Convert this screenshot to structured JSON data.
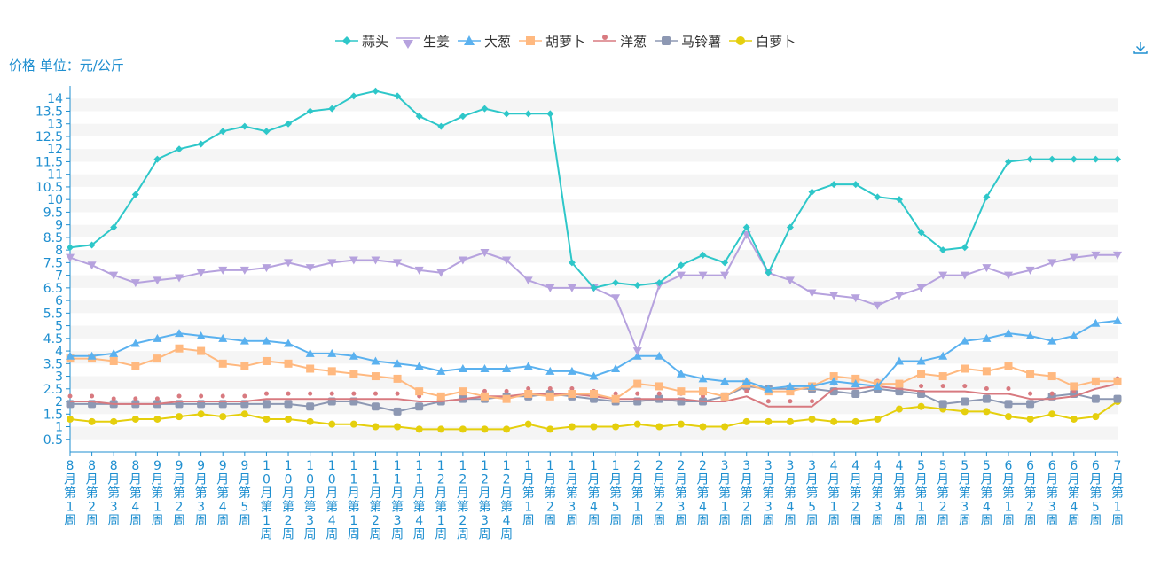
{
  "unit_label": "价格 单位：元/公斤",
  "icons": {
    "download": "download-icon"
  },
  "colors": {
    "garlic": "#2ec7c9",
    "ginger": "#b6a2de",
    "scallion": "#5ab1ef",
    "carrot": "#ffb980",
    "onion": "#d87a80",
    "potato": "#8d98b3",
    "radish": "#e5cf0d",
    "axis_text": "#1f8fd0"
  },
  "chart_data": {
    "type": "line",
    "title": "",
    "ylabel": "价格 单位：元/公斤",
    "xlabel": "",
    "ylim": [
      0,
      14.5
    ],
    "yticks": [
      0.5,
      1,
      1.5,
      2,
      2.5,
      3,
      3.5,
      4,
      4.5,
      5,
      5.5,
      6,
      6.5,
      7,
      7.5,
      8,
      8.5,
      9,
      9.5,
      10,
      10.5,
      11,
      11.5,
      12,
      12.5,
      13,
      13.5,
      14
    ],
    "grid": "horizontal-stripes",
    "legend_position": "top-center",
    "categories": [
      "8月第1周",
      "8月第2周",
      "8月第3周",
      "8月第4周",
      "9月第1周",
      "9月第2周",
      "9月第3周",
      "9月第4周",
      "9月第5周",
      "10月第1周",
      "10月第2周",
      "10月第3周",
      "10月第4周",
      "11月第1周",
      "11月第2周",
      "11月第3周",
      "11月第4周",
      "12月第1周",
      "12月第2周",
      "12月第3周",
      "12月第4周",
      "1月第1周",
      "1月第2周",
      "1月第3周",
      "1月第4周",
      "1月第5周",
      "2月第1周",
      "2月第2周",
      "2月第3周",
      "2月第4周",
      "3月第1周",
      "3月第2周",
      "3月第3周",
      "3月第4周",
      "3月第5周",
      "4月第1周",
      "4月第2周",
      "4月第3周",
      "4月第4周",
      "5月第1周",
      "5月第2周",
      "5月第3周",
      "5月第4周",
      "6月第1周",
      "6月第2周",
      "6月第3周",
      "6月第4周",
      "6月第5周",
      "7月第1周"
    ],
    "series": [
      {
        "name": "蒜头",
        "color": "#2ec7c9",
        "marker": "diamond",
        "values": [
          8.1,
          8.2,
          8.9,
          10.2,
          11.6,
          12.0,
          12.2,
          12.7,
          12.9,
          12.7,
          13.0,
          13.5,
          13.6,
          14.1,
          14.3,
          14.1,
          13.3,
          12.9,
          13.3,
          13.6,
          13.4,
          13.4,
          13.4,
          7.5,
          6.5,
          6.7,
          6.6,
          6.7,
          7.4,
          7.8,
          7.5,
          8.9,
          7.1,
          8.9,
          10.3,
          10.6,
          10.6,
          10.1,
          10.0,
          8.7,
          8.0,
          8.1,
          10.1,
          11.5,
          11.6,
          11.6,
          11.6,
          11.6,
          11.6
        ]
      },
      {
        "name": "生姜",
        "color": "#b6a2de",
        "marker": "triangle-down",
        "values": [
          7.7,
          7.4,
          7.0,
          6.7,
          6.8,
          6.9,
          7.1,
          7.2,
          7.2,
          7.3,
          7.5,
          7.3,
          7.5,
          7.6,
          7.6,
          7.5,
          7.2,
          7.1,
          7.6,
          7.9,
          7.6,
          6.8,
          6.5,
          6.5,
          6.5,
          6.1,
          4.0,
          6.6,
          7.0,
          7.0,
          7.0,
          8.6,
          7.1,
          6.8,
          6.3,
          6.2,
          6.1,
          5.8,
          6.2,
          6.5,
          7.0,
          7.0,
          7.3,
          7.0,
          7.2,
          7.5,
          7.7,
          7.8,
          7.8
        ]
      },
      {
        "name": "大葱",
        "color": "#5ab1ef",
        "marker": "triangle",
        "values": [
          3.8,
          3.8,
          3.9,
          4.3,
          4.5,
          4.7,
          4.6,
          4.5,
          4.4,
          4.4,
          4.3,
          3.9,
          3.9,
          3.8,
          3.6,
          3.5,
          3.4,
          3.2,
          3.3,
          3.3,
          3.3,
          3.4,
          3.2,
          3.2,
          3.0,
          3.3,
          3.8,
          3.8,
          3.1,
          2.9,
          2.8,
          2.8,
          2.5,
          2.6,
          2.6,
          2.8,
          2.7,
          2.6,
          3.6,
          3.6,
          3.8,
          4.4,
          4.5,
          4.7,
          4.6,
          4.4,
          4.6,
          5.1,
          5.2
        ]
      },
      {
        "name": "胡萝卜",
        "color": "#ffb980",
        "marker": "square",
        "values": [
          3.7,
          3.7,
          3.6,
          3.4,
          3.7,
          4.1,
          4.0,
          3.5,
          3.4,
          3.6,
          3.5,
          3.3,
          3.2,
          3.1,
          3.0,
          2.9,
          2.4,
          2.2,
          2.4,
          2.2,
          2.1,
          2.3,
          2.2,
          2.3,
          2.3,
          2.1,
          2.7,
          2.6,
          2.4,
          2.4,
          2.2,
          2.7,
          2.4,
          2.4,
          2.6,
          3.0,
          2.9,
          2.7,
          2.7,
          3.1,
          3.0,
          3.3,
          3.2,
          3.4,
          3.1,
          3.0,
          2.6,
          2.8,
          2.8
        ]
      },
      {
        "name": "洋葱",
        "color": "#d87a80",
        "marker": "pin",
        "values": [
          2.0,
          2.0,
          1.9,
          1.9,
          1.9,
          2.0,
          2.0,
          2.0,
          2.0,
          2.1,
          2.1,
          2.1,
          2.1,
          2.1,
          2.1,
          2.1,
          2.0,
          2.0,
          2.1,
          2.2,
          2.2,
          2.3,
          2.3,
          2.3,
          2.2,
          2.1,
          2.1,
          2.1,
          2.1,
          2.0,
          2.0,
          2.2,
          1.8,
          1.8,
          1.8,
          2.5,
          2.5,
          2.6,
          2.5,
          2.4,
          2.4,
          2.4,
          2.3,
          2.3,
          2.1,
          2.1,
          2.2,
          2.5,
          2.7
        ]
      },
      {
        "name": "马铃薯",
        "color": "#8d98b3",
        "marker": "rounded-square",
        "values": [
          1.9,
          1.9,
          1.9,
          1.9,
          1.9,
          1.9,
          1.9,
          1.9,
          1.9,
          1.9,
          1.9,
          1.8,
          2.0,
          2.0,
          1.8,
          1.6,
          1.8,
          2.0,
          2.1,
          2.1,
          2.2,
          2.2,
          2.3,
          2.2,
          2.1,
          2.0,
          2.0,
          2.1,
          2.0,
          2.0,
          2.2,
          2.6,
          2.5,
          2.5,
          2.5,
          2.4,
          2.3,
          2.5,
          2.4,
          2.3,
          1.9,
          2.0,
          2.1,
          1.9,
          1.9,
          2.2,
          2.3,
          2.1,
          2.1
        ]
      },
      {
        "name": "白萝卜",
        "color": "#e5cf0d",
        "marker": "circle",
        "values": [
          1.3,
          1.2,
          1.2,
          1.3,
          1.3,
          1.4,
          1.5,
          1.4,
          1.5,
          1.3,
          1.3,
          1.2,
          1.1,
          1.1,
          1.0,
          1.0,
          0.9,
          0.9,
          0.9,
          0.9,
          0.9,
          1.1,
          0.9,
          1.0,
          1.0,
          1.0,
          1.1,
          1.0,
          1.1,
          1.0,
          1.0,
          1.2,
          1.2,
          1.2,
          1.3,
          1.2,
          1.2,
          1.3,
          1.7,
          1.8,
          1.7,
          1.6,
          1.6,
          1.4,
          1.3,
          1.5,
          1.3,
          1.4,
          2.0
        ]
      }
    ]
  }
}
